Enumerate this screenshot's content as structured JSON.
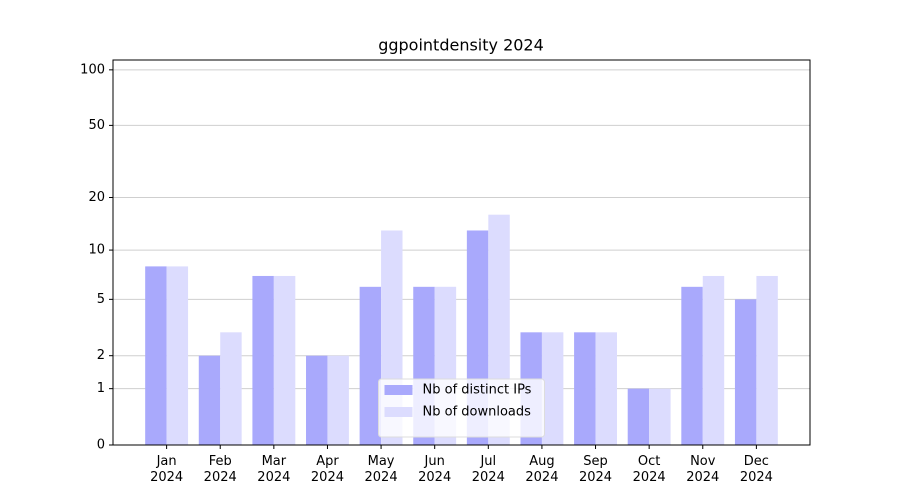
{
  "chart_data": {
    "type": "bar",
    "title": "ggpointdensity 2024",
    "categories": [
      "Jan 2024",
      "Feb 2024",
      "Mar 2024",
      "Apr 2024",
      "May 2024",
      "Jun 2024",
      "Jul 2024",
      "Aug 2024",
      "Sep 2024",
      "Oct 2024",
      "Nov 2024",
      "Dec 2024"
    ],
    "series": [
      {
        "name": "Nb of distinct IPs",
        "color": "#a9a9fc",
        "values": [
          8,
          2,
          7,
          2,
          6,
          6,
          13,
          3,
          3,
          1,
          6,
          5
        ]
      },
      {
        "name": "Nb of downloads",
        "color": "#dcdcfe",
        "values": [
          8,
          3,
          7,
          2,
          13,
          6,
          16,
          3,
          3,
          1,
          7,
          7
        ]
      }
    ],
    "yscale": "log1p",
    "ylim": [
      0,
      113
    ],
    "yticks": [
      0,
      1,
      2,
      5,
      10,
      20,
      50,
      100
    ],
    "grid": true,
    "legend": "lower center"
  }
}
